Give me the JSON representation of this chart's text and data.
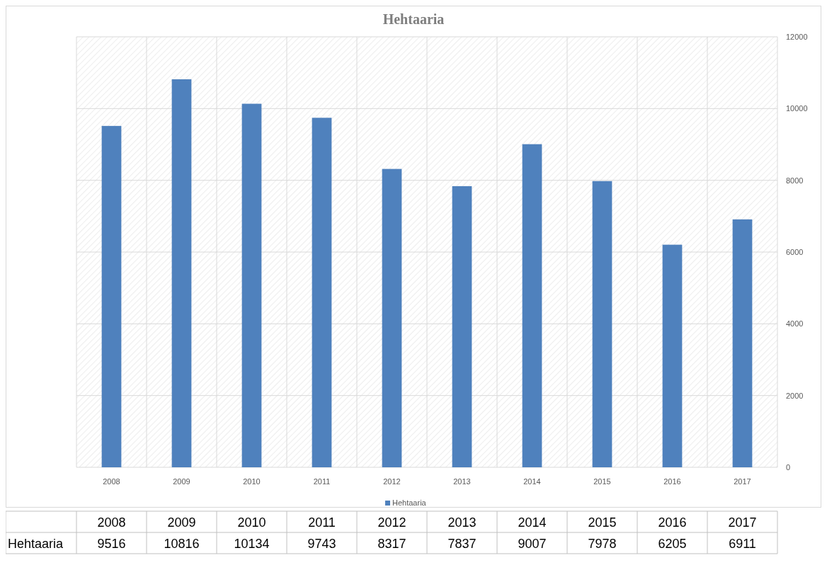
{
  "chart_data": {
    "type": "bar",
    "title": "Hehtaaria",
    "categories": [
      "2008",
      "2009",
      "2010",
      "2011",
      "2012",
      "2013",
      "2014",
      "2015",
      "2016",
      "2017"
    ],
    "series": [
      {
        "name": "Hehtaaria",
        "color": "#4f81bd",
        "values": [
          9516,
          10816,
          10134,
          9743,
          8317,
          7837,
          9007,
          7978,
          6205,
          6911
        ]
      }
    ],
    "ylim": [
      0,
      12000
    ],
    "yticks": [
      0,
      2000,
      4000,
      6000,
      8000,
      10000,
      12000
    ],
    "grid": true,
    "legend": "bottom",
    "data_labels": true
  }
}
